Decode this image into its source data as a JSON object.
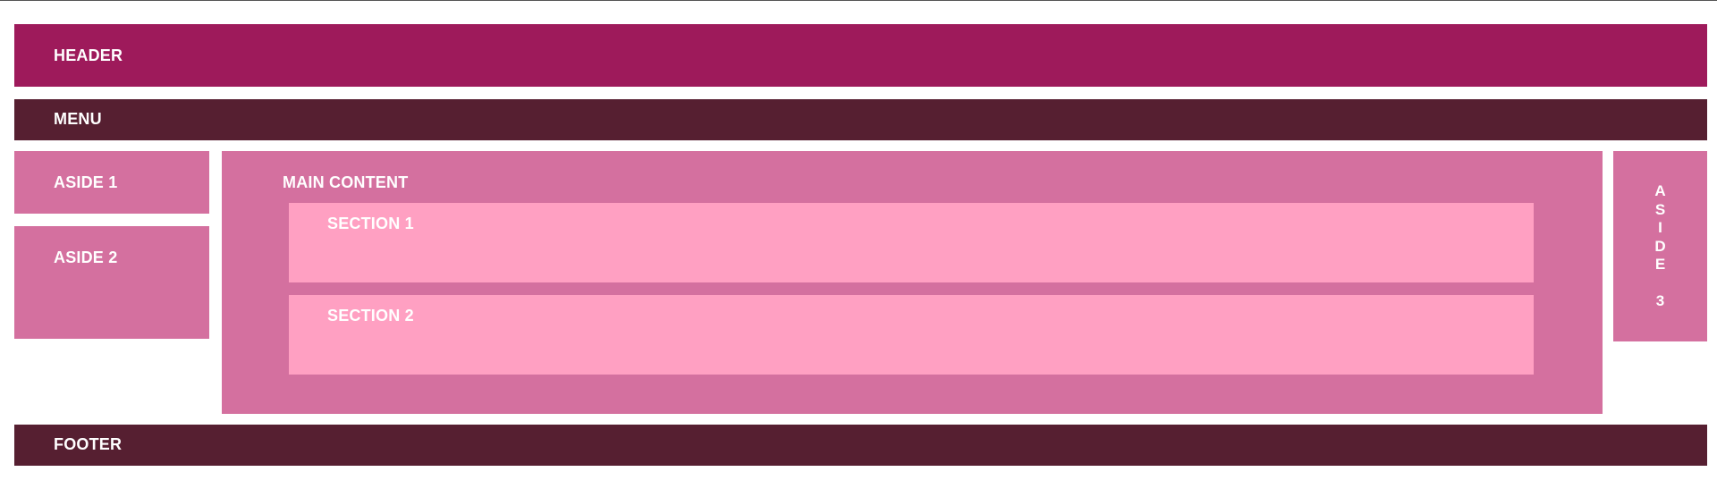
{
  "colors": {
    "header_bg": "#9e1a5b",
    "menu_bg": "#561f31",
    "aside_bg": "#d4709f",
    "main_bg": "#d4709f",
    "section_bg": "#ffa0c2",
    "footer_bg": "#561f31",
    "text": "#ffffff"
  },
  "header": {
    "label": "HEADER"
  },
  "menu": {
    "label": "MENU"
  },
  "aside1": {
    "label": "ASIDE 1"
  },
  "aside2": {
    "label": "ASIDE 2"
  },
  "main": {
    "label": "MAIN CONTENT",
    "sections": [
      {
        "label": "SECTION 1"
      },
      {
        "label": "SECTION 2"
      }
    ]
  },
  "aside3": {
    "label": "ASIDE 3"
  },
  "footer": {
    "label": "FOOTER"
  }
}
